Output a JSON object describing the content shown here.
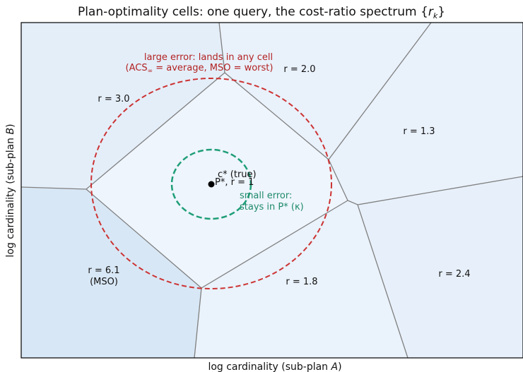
{
  "title": {
    "text": "Plan-optimality cells: one query, the cost-ratio spectrum {",
    "var": "r",
    "sub": "k",
    "end": "}"
  },
  "x_label": {
    "text": "log cardinality (sub-plan ",
    "var": "A",
    "end": ")"
  },
  "y_label": {
    "text": "log cardinality (sub-plan ",
    "var": "B",
    "end": ")"
  },
  "cells": [
    {
      "label": "r = 3.0"
    },
    {
      "label": "r = 2.0"
    },
    {
      "label": "r = 1.3"
    },
    {
      "label": "P*,  r = 1"
    },
    {
      "label": "r = 2.4"
    },
    {
      "label": "r = 1.8"
    },
    {
      "label": "r = 6.1",
      "note": "(MSO)"
    }
  ],
  "annotations": {
    "large_error": {
      "line1": "large error: lands in any cell",
      "line2_start": "(ACS",
      "line2_sub": "∞",
      "line2_end": " = average,  MSO = worst)"
    },
    "true_point": "c*  (true)",
    "small_error": {
      "line1": "small error:",
      "line2": "stays in P*   (κ)"
    }
  }
}
